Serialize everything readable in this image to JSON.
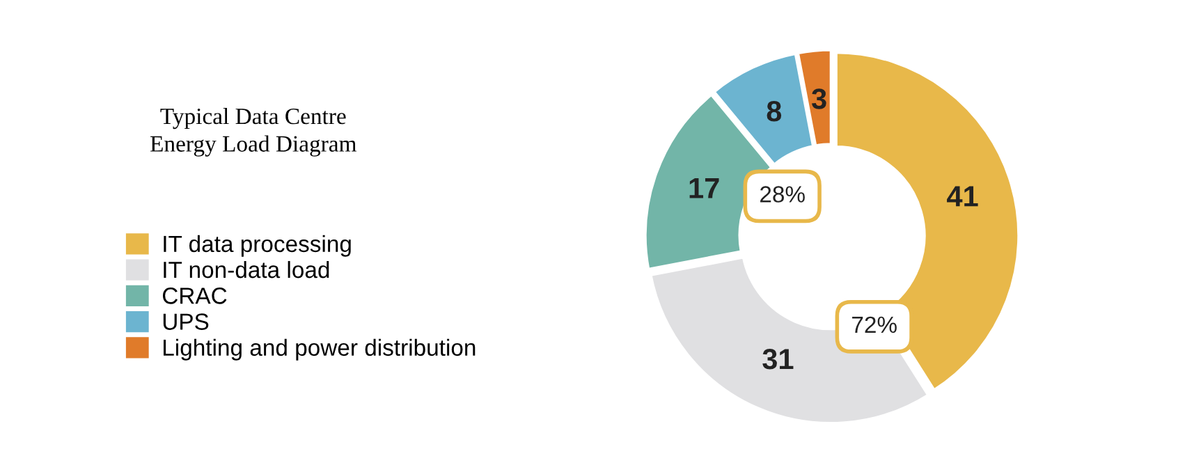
{
  "chart_data": {
    "type": "donut",
    "title": "Typical Data Centre\nEnergy Load Diagram",
    "categories": [
      "IT data processing",
      "IT non-data load",
      "CRAC",
      "UPS",
      "Lighting and power distribution"
    ],
    "values": [
      41,
      31,
      17,
      8,
      3
    ],
    "colors": [
      "#e8b84a",
      "#e0e0e2",
      "#72b5a8",
      "#6cb4d0",
      "#e07b2a"
    ],
    "data_labels": true,
    "legend": "left",
    "annotations": [
      "28%",
      "72%"
    ]
  }
}
